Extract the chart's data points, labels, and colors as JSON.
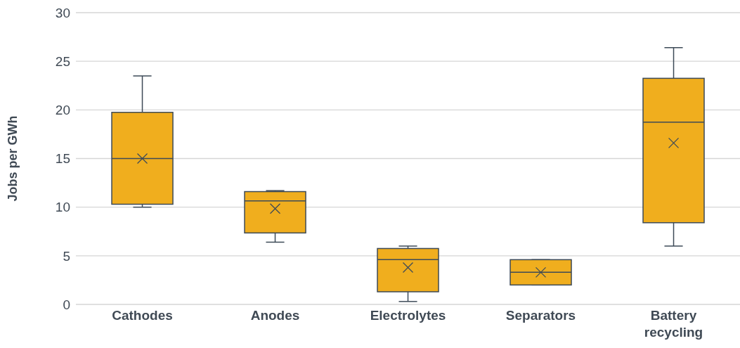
{
  "chart_data": {
    "type": "box",
    "ylabel": "Jobs per GWh",
    "color": "#f0ae1e",
    "categories": [
      "Cathodes",
      "Anodes",
      "Electrolytes",
      "Separators",
      "Battery recycling"
    ],
    "boxes": [
      {
        "low": 10.0,
        "q1": 10.3,
        "median": 15.0,
        "q3": 19.75,
        "high": 23.5,
        "mean": 15.0
      },
      {
        "low": 6.4,
        "q1": 7.35,
        "median": 10.65,
        "q3": 11.6,
        "high": 11.7,
        "mean": 9.85
      },
      {
        "low": 0.3,
        "q1": 1.3,
        "median": 4.6,
        "q3": 5.75,
        "high": 6.0,
        "mean": 3.8
      },
      {
        "low": 2.0,
        "q1": 2.0,
        "median": 3.3,
        "q3": 4.6,
        "high": 4.6,
        "mean": 3.3
      },
      {
        "low": 6.0,
        "q1": 8.4,
        "median": 18.75,
        "q3": 23.25,
        "high": 26.4,
        "mean": 16.6
      }
    ],
    "ylim": [
      0,
      30
    ],
    "yticks": [
      0,
      5,
      10,
      15,
      20,
      25,
      30
    ],
    "grid": "y"
  }
}
